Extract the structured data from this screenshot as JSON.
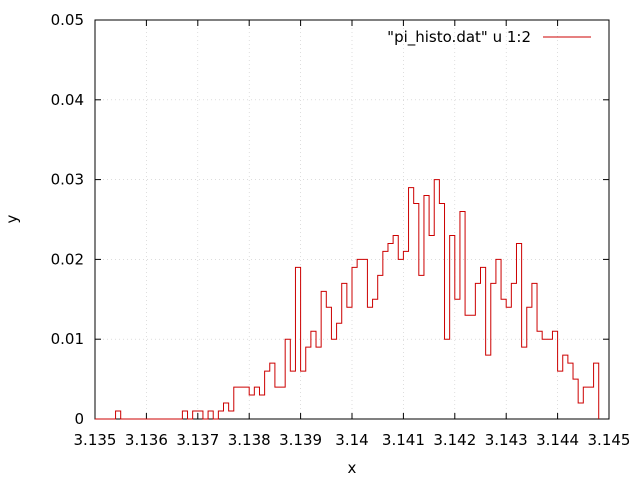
{
  "chart_data": {
    "type": "line",
    "style": "histeps",
    "title": "",
    "xlabel": "x",
    "ylabel": "y",
    "xlim": [
      3.135,
      3.145
    ],
    "ylim": [
      0,
      0.05
    ],
    "grid": true,
    "legend_position": "top-right",
    "xticks": [
      3.135,
      3.136,
      3.137,
      3.138,
      3.139,
      3.14,
      3.141,
      3.142,
      3.143,
      3.144,
      3.145
    ],
    "xtick_labels": [
      "3.135",
      "3.136",
      "3.137",
      "3.138",
      "3.139",
      "3.14",
      "3.141",
      "3.142",
      "3.143",
      "3.144",
      "3.145"
    ],
    "yticks": [
      0,
      0.01,
      0.02,
      0.03,
      0.04,
      0.05
    ],
    "ytick_labels": [
      "0",
      "0.01",
      "0.02",
      "0.03",
      "0.04",
      "0.05"
    ],
    "series": [
      {
        "name": "\"pi_histo.dat\" u 1:2",
        "color": "#cc0000",
        "x": [
          3.13505,
          3.13515,
          3.13525,
          3.13535,
          3.13545,
          3.13555,
          3.13565,
          3.13575,
          3.13585,
          3.13595,
          3.13605,
          3.13615,
          3.13625,
          3.13635,
          3.13645,
          3.13655,
          3.13665,
          3.13675,
          3.13685,
          3.13695,
          3.13705,
          3.13715,
          3.13725,
          3.13735,
          3.13745,
          3.13755,
          3.13765,
          3.13775,
          3.13785,
          3.13795,
          3.13805,
          3.13815,
          3.13825,
          3.13835,
          3.13845,
          3.13855,
          3.13865,
          3.13875,
          3.13885,
          3.13895,
          3.13905,
          3.13915,
          3.13925,
          3.13935,
          3.13945,
          3.13955,
          3.13965,
          3.13975,
          3.13985,
          3.13995,
          3.14005,
          3.14015,
          3.14025,
          3.14035,
          3.14045,
          3.14055,
          3.14065,
          3.14075,
          3.14085,
          3.14095,
          3.14105,
          3.14115,
          3.14125,
          3.14135,
          3.14145,
          3.14155,
          3.14165,
          3.14175,
          3.14185,
          3.14195,
          3.14205,
          3.14215,
          3.14225,
          3.14235,
          3.14245,
          3.14255,
          3.14265,
          3.14275,
          3.14285,
          3.14295,
          3.14305,
          3.14315,
          3.14325,
          3.14335,
          3.14345,
          3.14355,
          3.14365,
          3.14375,
          3.14385,
          3.14395,
          3.14405,
          3.14415,
          3.14425,
          3.14435,
          3.14445,
          3.14455,
          3.14465,
          3.14475
        ],
        "y": [
          0,
          0,
          0,
          0,
          0.001,
          0,
          0,
          0,
          0,
          0,
          0,
          0,
          0,
          0,
          0,
          0,
          0,
          0.001,
          0,
          0.001,
          0.001,
          0,
          0.001,
          0,
          0.001,
          0.002,
          0.001,
          0.004,
          0.004,
          0.004,
          0.003,
          0.004,
          0.003,
          0.006,
          0.007,
          0.004,
          0.004,
          0.01,
          0.006,
          0.019,
          0.006,
          0.009,
          0.011,
          0.009,
          0.016,
          0.014,
          0.01,
          0.012,
          0.017,
          0.014,
          0.019,
          0.02,
          0.02,
          0.014,
          0.015,
          0.018,
          0.021,
          0.022,
          0.023,
          0.02,
          0.021,
          0.029,
          0.027,
          0.018,
          0.028,
          0.023,
          0.03,
          0.027,
          0.01,
          0.023,
          0.015,
          0.026,
          0.013,
          0.013,
          0.017,
          0.019,
          0.008,
          0.017,
          0.02,
          0.015,
          0.014,
          0.017,
          0.022,
          0.009,
          0.014,
          0.017,
          0.011,
          0.01,
          0.01,
          0.011,
          0.006,
          0.008,
          0.007,
          0.005,
          0.002,
          0.004,
          0.004,
          0.007
        ]
      }
    ]
  }
}
